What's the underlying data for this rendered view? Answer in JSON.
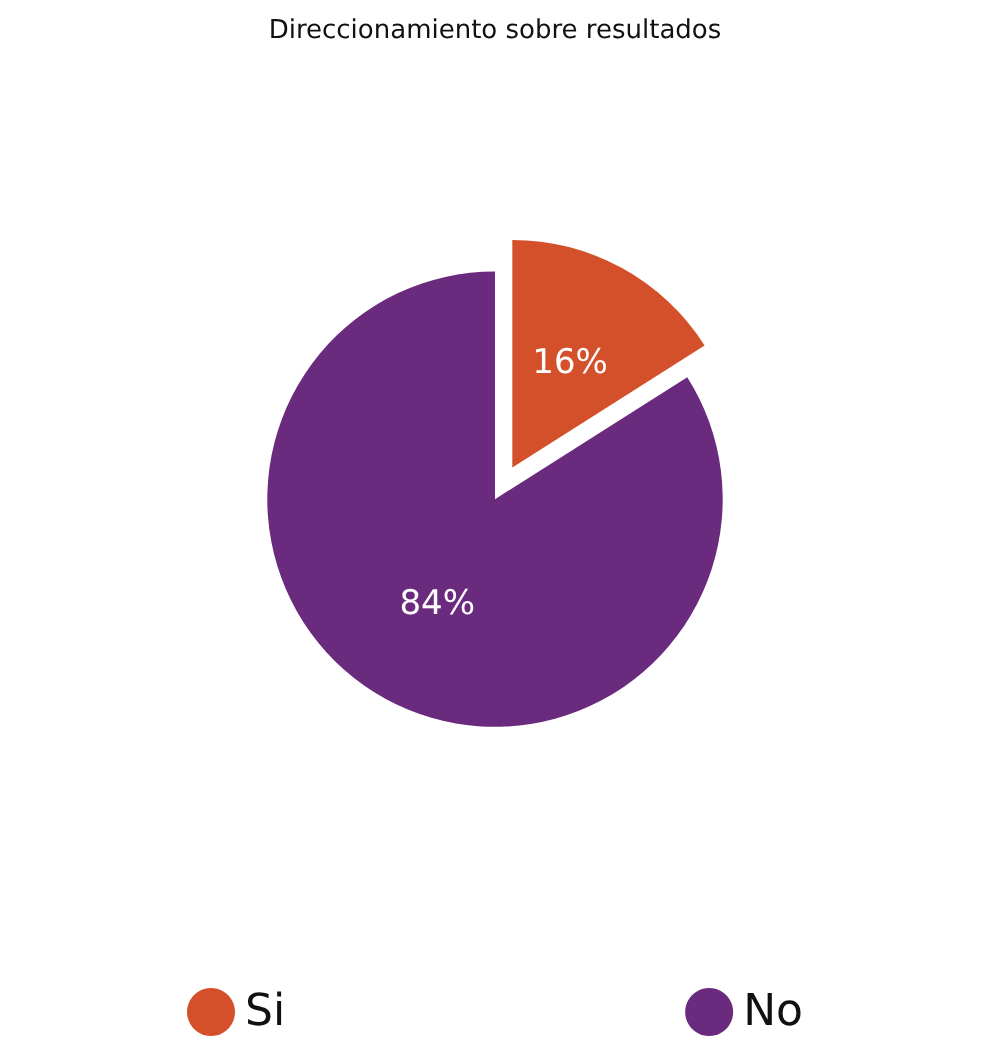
{
  "chart_data": {
    "type": "pie",
    "title": "Direccionamiento sobre resultados",
    "categories": [
      "Si",
      "No"
    ],
    "values": [
      16,
      84
    ],
    "colors": [
      "#d4502a",
      "#6a2a7e"
    ],
    "value_labels": [
      "16%",
      "84%"
    ],
    "legend": "bottom"
  }
}
